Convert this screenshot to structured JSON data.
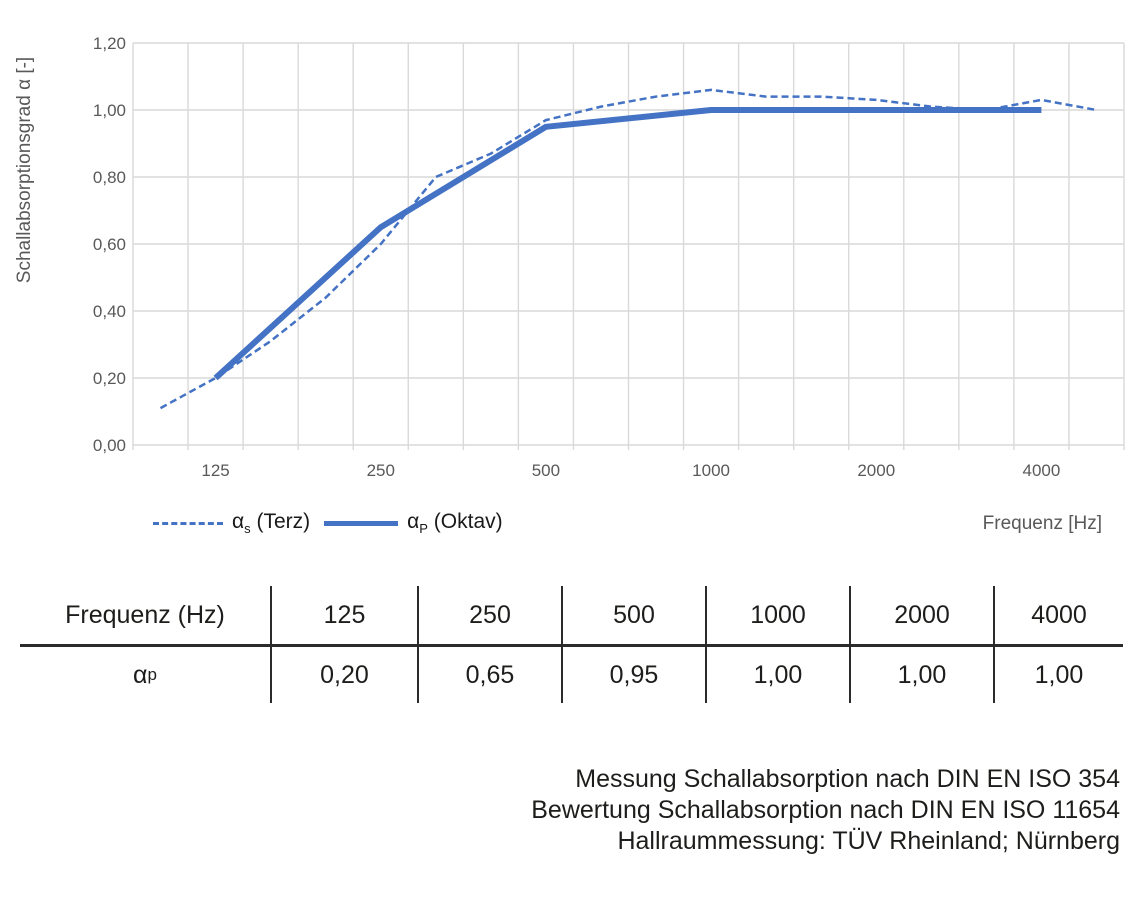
{
  "chart_data": {
    "type": "line",
    "title": "",
    "xlabel": "Frequenz [Hz]",
    "ylabel": "Schallabsorptionsgrad α [-]",
    "ylim": [
      0,
      1.2
    ],
    "x_scale": "third-octave categories",
    "categories": [
      100,
      125,
      160,
      200,
      250,
      315,
      400,
      500,
      630,
      800,
      1000,
      1250,
      1600,
      2000,
      2500,
      3150,
      4000,
      5000
    ],
    "x_ticks": [
      {
        "value": 125,
        "label": "125"
      },
      {
        "value": 250,
        "label": "250"
      },
      {
        "value": 500,
        "label": "500"
      },
      {
        "value": 1000,
        "label": "1000"
      },
      {
        "value": 2000,
        "label": "2000"
      },
      {
        "value": 4000,
        "label": "4000"
      }
    ],
    "y_ticks": [
      {
        "value": 0.0,
        "label": "0,00"
      },
      {
        "value": 0.2,
        "label": "0,20"
      },
      {
        "value": 0.4,
        "label": "0,40"
      },
      {
        "value": 0.6,
        "label": "0,60"
      },
      {
        "value": 0.8,
        "label": "0,80"
      },
      {
        "value": 1.0,
        "label": "1,00"
      },
      {
        "value": 1.2,
        "label": "1,20"
      }
    ],
    "grid": true,
    "legend_position": "bottom-left",
    "series": [
      {
        "name": "αs (Terz)",
        "style": "dashed",
        "stroke_width": 2.5,
        "x": [
          100,
          125,
          160,
          200,
          250,
          315,
          400,
          500,
          630,
          800,
          1000,
          1250,
          1600,
          2000,
          2500,
          3150,
          4000,
          5000
        ],
        "values": [
          0.11,
          0.2,
          0.31,
          0.44,
          0.6,
          0.8,
          0.87,
          0.97,
          1.01,
          1.04,
          1.06,
          1.04,
          1.04,
          1.03,
          1.01,
          1.0,
          1.03,
          1.0
        ]
      },
      {
        "name": "αP (Oktav)",
        "style": "solid",
        "stroke_width": 6,
        "x": [
          125,
          250,
          500,
          1000,
          2000,
          4000
        ],
        "values": [
          0.2,
          0.65,
          0.95,
          1.0,
          1.0,
          1.0
        ]
      }
    ],
    "colors": {
      "line_blue": "#4472C4",
      "grid": "#D9D9D9",
      "axis_text": "#595959"
    }
  },
  "legend": {
    "terz": {
      "alpha": "α",
      "sub": "s",
      "rest": " (Terz)"
    },
    "oktav": {
      "alpha": "α",
      "sub": "P",
      "rest": " (Oktav)"
    }
  },
  "table": {
    "header_label": "Frequenz (Hz)",
    "row_label": {
      "alpha": "α",
      "sub": "p"
    },
    "frequencies": [
      "125",
      "250",
      "500",
      "1000",
      "2000",
      "4000"
    ],
    "values": [
      "0,20",
      "0,65",
      "0,95",
      "1,00",
      "1,00",
      "1,00"
    ]
  },
  "footer": {
    "lines": [
      "Messung Schallabsorption nach DIN EN ISO 354",
      "Bewertung Schallabsorption nach DIN EN ISO 11654",
      "Hallraummessung: TÜV Rheinland; Nürnberg"
    ]
  }
}
